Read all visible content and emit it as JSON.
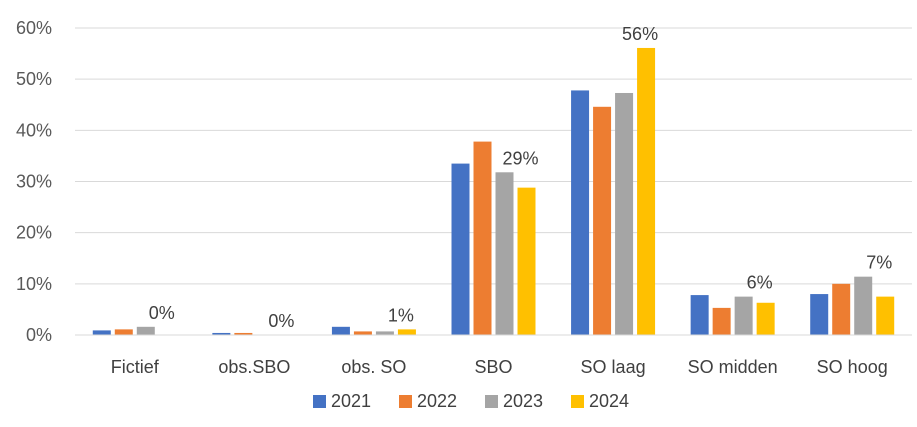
{
  "chart_data": {
    "type": "bar",
    "title": "",
    "xlabel": "",
    "ylabel": "",
    "ylim": [
      0,
      0.6
    ],
    "y_ticks": [
      "0%",
      "10%",
      "20%",
      "30%",
      "40%",
      "50%",
      "60%"
    ],
    "grid": true,
    "legend_position": "bottom",
    "categories": [
      "Fictief",
      "obs.SBO",
      "obs. SO",
      "SBO",
      "SO laag",
      "SO midden",
      "SO hoog"
    ],
    "series": [
      {
        "name": "2021",
        "color": "#4472C4",
        "values": [
          0.009,
          0.004,
          0.016,
          0.335,
          0.478,
          0.078,
          0.08
        ]
      },
      {
        "name": "2022",
        "color": "#ED7D31",
        "values": [
          0.011,
          0.004,
          0.007,
          0.378,
          0.446,
          0.053,
          0.1
        ]
      },
      {
        "name": "2023",
        "color": "#A5A5A5",
        "values": [
          0.016,
          0.0,
          0.007,
          0.318,
          0.473,
          0.075,
          0.114
        ]
      },
      {
        "name": "2024",
        "color": "#FFC000",
        "values": [
          0.0,
          0.0,
          0.011,
          0.288,
          0.561,
          0.063,
          0.075
        ]
      }
    ],
    "data_labels": [
      {
        "category_index": 0,
        "text": "0%"
      },
      {
        "category_index": 1,
        "text": "0%"
      },
      {
        "category_index": 2,
        "text": "1%"
      },
      {
        "category_index": 3,
        "text": "29%"
      },
      {
        "category_index": 4,
        "text": "56%"
      },
      {
        "category_index": 5,
        "text": "6%"
      },
      {
        "category_index": 6,
        "text": "7%"
      }
    ]
  }
}
